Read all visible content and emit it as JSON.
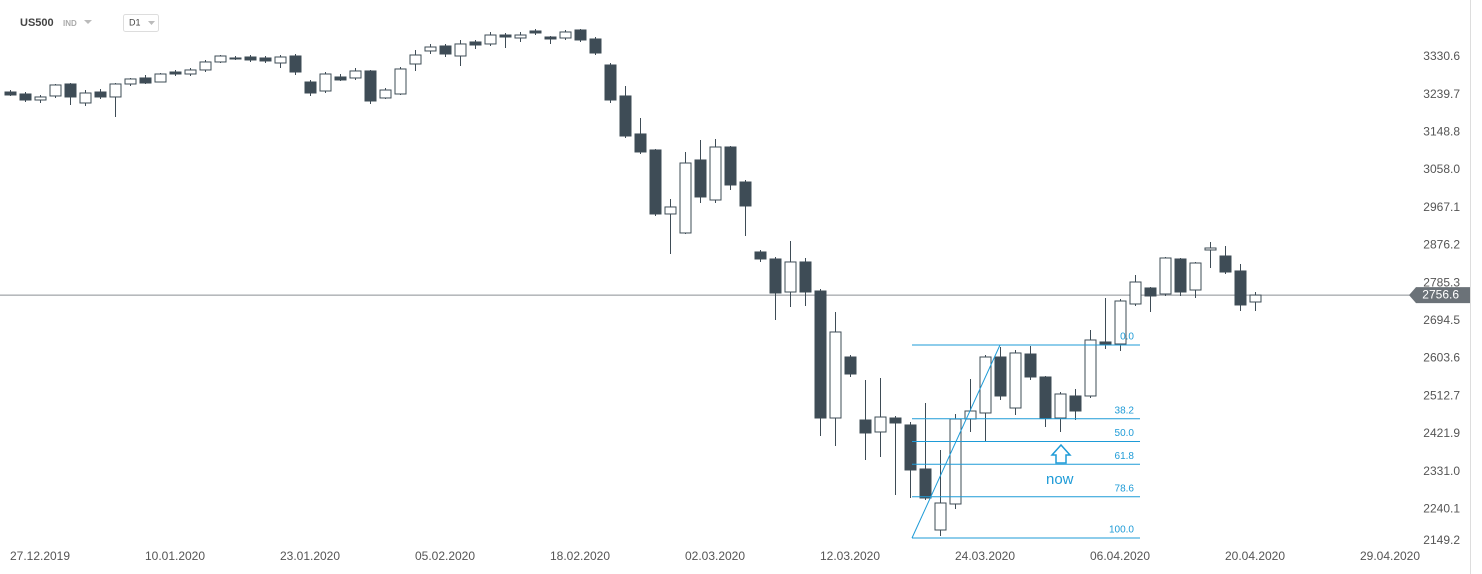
{
  "chart_data": {
    "type": "candlestick",
    "symbol": "US500",
    "instrument_type": "IND",
    "timeframe": "D1",
    "up_color": "#ffffff",
    "down_color": "#3e4c56",
    "categories": [
      null,
      null,
      "27.12.2019",
      null,
      null,
      null,
      null,
      null,
      null,
      null,
      null,
      "10.01.2020",
      null,
      null,
      null,
      null,
      null,
      null,
      null,
      null,
      "23.01.2020",
      null,
      null,
      null,
      null,
      null,
      null,
      null,
      null,
      "05.02.2020",
      null,
      null,
      null,
      null,
      null,
      null,
      null,
      null,
      "18.02.2020",
      null,
      null,
      null,
      null,
      null,
      null,
      null,
      null,
      "02.03.2020",
      null,
      null,
      null,
      null,
      null,
      null,
      null,
      null,
      "12.03.2020",
      null,
      null,
      null,
      null,
      null,
      null,
      null,
      null,
      "24.03.2020",
      null,
      null,
      null,
      null,
      null,
      null,
      null,
      null,
      "06.04.2020",
      null,
      null,
      null,
      null,
      null,
      null,
      null,
      null,
      "20.04.2020",
      null,
      null,
      null,
      null,
      null,
      null,
      null,
      null,
      "29.04.2020"
    ],
    "open": [
      3246.2,
      3241.4,
      3226.9,
      3236.6,
      3265.5,
      3219.7,
      3246.2,
      3234.2,
      3265.5,
      3280.0,
      3270.3,
      3294.4,
      3289.6,
      3299.3,
      3318.6,
      3328.2,
      3330.6,
      3328.2,
      3316.1,
      3333.0,
      3270.3,
      3248.6,
      3282.4,
      3280.0,
      3296.9,
      3231.8,
      3241.4,
      3313.7,
      3345.1,
      3357.1,
      3333.0,
      3366.8,
      3362.0,
      3383.6,
      3376.4,
      3393.3,
      3378.8,
      3376.4,
      3395.7,
      3374.0,
      3311.3,
      3236.6,
      3145.0,
      3106.4,
      2952.1,
      2906.3,
      3082.3,
      2985.8,
      3113.6,
      3029.2,
      2860.5,
      2843.6,
      2764.0,
      2836.4,
      2766.4,
      2460.2,
      2607.3,
      2455.4,
      2426.5,
      2460.2,
      2443.4,
      2337.3,
      2190.2,
      2252.9,
      2457.8,
      2472.3,
      2607.3,
      2484.3,
      2614.5,
      2559.1,
      2460.2,
      2513.3,
      2513.3,
      2643.5,
      2638.7,
      2735.1,
      2773.7,
      2759.2,
      2843.6,
      2768.8,
      2865.3,
      2850.8,
      2814.7,
      2739.9,
      null,
      null,
      null,
      null,
      null,
      null,
      null,
      null,
      null
    ],
    "high": [
      3251.0,
      3246.2,
      3239.0,
      3265.5,
      3267.9,
      3251.0,
      3253.5,
      3267.9,
      3280.0,
      3287.2,
      3292.0,
      3299.3,
      3304.1,
      3323.4,
      3335.4,
      3333.0,
      3335.4,
      3333.0,
      3335.4,
      3337.8,
      3275.2,
      3294.4,
      3289.6,
      3304.1,
      3299.3,
      3255.9,
      3306.5,
      3347.5,
      3362.0,
      3362.0,
      3371.6,
      3371.6,
      3390.9,
      3388.5,
      3390.9,
      3398.1,
      3381.2,
      3395.7,
      3398.1,
      3378.8,
      3316.1,
      3260.7,
      3183.5,
      3108.8,
      2988.2,
      3101.6,
      3130.5,
      3132.9,
      3116.0,
      3034.1,
      2865.3,
      2848.4,
      2887.0,
      2846.0,
      2771.3,
      2715.8,
      2612.1,
      2551.9,
      2556.7,
      2465.1,
      2450.6,
      2496.4,
      2383.1,
      2469.9,
      2554.3,
      2612.1,
      2631.4,
      2624.2,
      2633.8,
      2561.5,
      2522.9,
      2530.2,
      2672.4,
      2749.6,
      2747.1,
      2805.0,
      2776.1,
      2848.4,
      2846.0,
      2836.4,
      2884.6,
      2874.9,
      2831.5,
      2764.0,
      null,
      null,
      null,
      null,
      null,
      null,
      null,
      null,
      null
    ],
    "low": [
      3236.6,
      3222.1,
      3219.7,
      3231.8,
      3214.9,
      3212.5,
      3229.3,
      3185.9,
      3260.7,
      3265.5,
      3270.3,
      3284.8,
      3284.8,
      3294.4,
      3316.1,
      3323.4,
      3318.6,
      3316.1,
      3304.1,
      3287.2,
      3236.6,
      3243.8,
      3272.7,
      3275.2,
      3217.3,
      3229.3,
      3239.0,
      3296.9,
      3337.8,
      3330.6,
      3308.9,
      3349.9,
      3357.1,
      3352.3,
      3366.8,
      3383.6,
      3362.0,
      3371.6,
      3366.8,
      3335.4,
      3219.7,
      3135.3,
      3096.7,
      2947.3,
      2855.6,
      2903.9,
      2978.6,
      2978.6,
      3009.9,
      2899.0,
      2836.4,
      2696.5,
      2727.9,
      2730.3,
      2416.8,
      2392.7,
      2559.1,
      2359.0,
      2366.2,
      2274.6,
      2267.4,
      2262.5,
      2175.7,
      2240.8,
      2426.5,
      2402.4,
      2503.6,
      2467.5,
      2551.9,
      2438.5,
      2426.5,
      2455.4,
      2508.5,
      2626.6,
      2621.8,
      2730.3,
      2715.8,
      2754.4,
      2754.4,
      2749.6,
      2821.9,
      2807.4,
      2718.2,
      2718.2,
      null,
      null,
      null,
      null,
      null,
      null,
      null,
      null,
      null
    ],
    "close": [
      3239.0,
      3226.9,
      3234.2,
      3263.1,
      3234.2,
      3243.8,
      3234.2,
      3265.5,
      3277.6,
      3267.9,
      3289.6,
      3289.6,
      3299.3,
      3318.6,
      3333.0,
      3325.8,
      3323.4,
      3321.0,
      3330.6,
      3294.4,
      3243.8,
      3289.6,
      3275.2,
      3296.9,
      3224.5,
      3251.0,
      3301.7,
      3335.4,
      3354.7,
      3337.8,
      3362.0,
      3359.5,
      3383.6,
      3378.8,
      3383.6,
      3388.5,
      3374.0,
      3390.9,
      3371.6,
      3340.2,
      3226.9,
      3140.1,
      3101.6,
      2952.1,
      2969.0,
      3075.0,
      2993.1,
      3113.6,
      3022.0,
      2971.4,
      2843.6,
      2761.6,
      2836.4,
      2764.0,
      2460.2,
      2667.6,
      2566.3,
      2424.1,
      2462.6,
      2448.2,
      2334.9,
      2267.4,
      2255.3,
      2457.8,
      2477.1,
      2607.3,
      2513.3,
      2617.0,
      2559.1,
      2460.2,
      2518.1,
      2477.1,
      2648.3,
      2636.2,
      2742.3,
      2788.1,
      2754.4,
      2846.0,
      2764.0,
      2833.9,
      2870.1,
      2812.2,
      2732.7,
      2756.6,
      null,
      null,
      null,
      null,
      null,
      null,
      null,
      null,
      null
    ],
    "ylim": [
      2146.8,
      3468.0
    ],
    "yticks": [
      2149.2,
      2240.1,
      {
        "value": 2331.0,
        "label": "2331.0"
      },
      2421.9,
      2512.7,
      2603.6,
      2694.5,
      2785.3,
      2876.2,
      2967.1,
      {
        "value": 3058.0,
        "label": "3058.0"
      },
      3148.8,
      3239.7,
      3330.6
    ],
    "current_price": 2756.6,
    "current_price_color": "#8a8f94",
    "fibonacci": {
      "high": 2636.2,
      "low": 2170.9,
      "color": "#1e9bd7",
      "levels": [
        {
          "value": 0,
          "label": "0.0"
        },
        38.2,
        {
          "value": 50,
          "label": "50.0"
        },
        61.8,
        78.6,
        {
          "value": 100,
          "label": "100.0"
        }
      ]
    },
    "annotation": "now"
  }
}
